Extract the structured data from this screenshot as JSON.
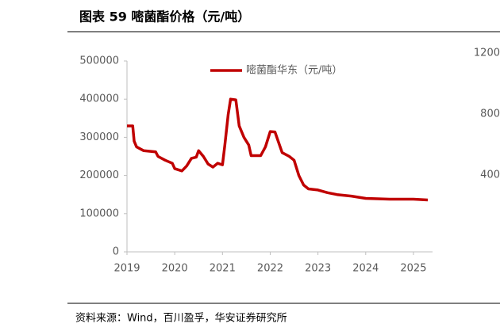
{
  "title": "图表 59 嘧菌酯价格（元/吨）",
  "source": "资料来源：Wind，百川盈孚，华安证券研究所",
  "chart_data": [
    {
      "type": "line",
      "xlim": [
        2019,
        2025.4
      ],
      "xticks": [
        2019,
        2020,
        2021,
        2022,
        2023,
        2024,
        2025
      ],
      "ylim": [
        0,
        500000
      ],
      "yticks": [
        0,
        100000,
        200000,
        300000,
        400000,
        500000
      ],
      "legend": "top",
      "series": [
        {
          "name": "嘧菌酯华东（元/吨）",
          "color": "#c00000",
          "x": [
            2019.0,
            2019.12,
            2019.15,
            2019.2,
            2019.35,
            2019.6,
            2019.65,
            2019.8,
            2019.95,
            2020.0,
            2020.15,
            2020.25,
            2020.35,
            2020.45,
            2020.5,
            2020.6,
            2020.7,
            2020.8,
            2020.9,
            2021.0,
            2021.05,
            2021.12,
            2021.17,
            2021.28,
            2021.35,
            2021.45,
            2021.55,
            2021.6,
            2021.8,
            2021.9,
            2022.0,
            2022.1,
            2022.25,
            2022.4,
            2022.5,
            2022.6,
            2022.7,
            2022.8,
            2023.0,
            2023.2,
            2023.4,
            2023.7,
            2024.0,
            2024.5,
            2025.0,
            2025.3
          ],
          "values": [
            330000,
            330000,
            290000,
            275000,
            265000,
            262000,
            250000,
            240000,
            232000,
            218000,
            212000,
            225000,
            245000,
            248000,
            265000,
            250000,
            230000,
            222000,
            232000,
            228000,
            280000,
            360000,
            400000,
            398000,
            330000,
            300000,
            280000,
            252000,
            252000,
            275000,
            315000,
            314000,
            260000,
            250000,
            240000,
            200000,
            175000,
            165000,
            162000,
            155000,
            150000,
            146000,
            140000,
            138000,
            138000,
            136000
          ]
        }
      ]
    },
    {
      "type": "line",
      "ylim": [
        0,
        1200
      ],
      "yticks": [
        400,
        800,
        1200
      ]
    }
  ]
}
